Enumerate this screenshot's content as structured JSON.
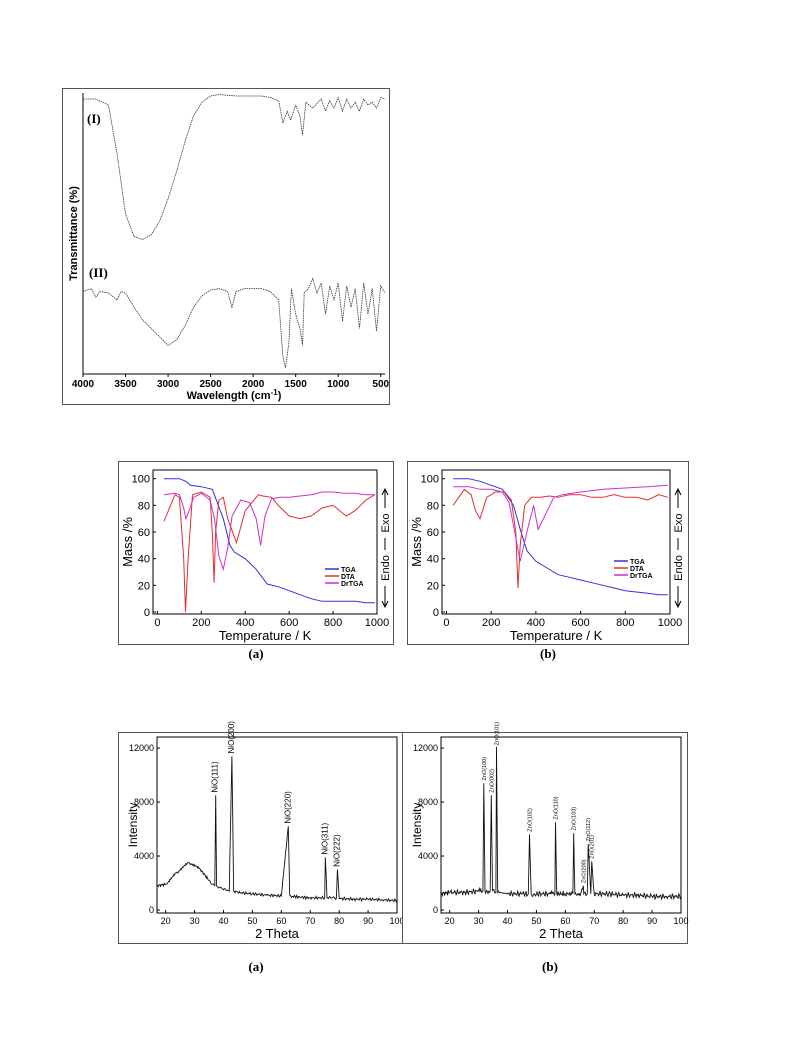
{
  "ftir": {
    "ylabel": "Transmittance (%)",
    "xlabel": "Wavelength (cm",
    "xlabel_sup": "-1",
    "xlabel_close": ")",
    "curve_labels": [
      "(I)",
      "(II)"
    ],
    "xticks": [
      "4000",
      "3500",
      "3000",
      "2500",
      "2000",
      "1500",
      "1000",
      "500"
    ]
  },
  "thermal": {
    "panel_labels": [
      "(a)",
      "(b)"
    ],
    "ylabel": "Mass /%",
    "xlabel": "Temperature / K",
    "exo_label": "Exo",
    "endo_label": "Endo",
    "yticks": [
      "0",
      "20",
      "40",
      "60",
      "80",
      "100"
    ],
    "xticks": [
      "0",
      "200",
      "400",
      "600",
      "800",
      "1000"
    ],
    "legend": [
      "TGA",
      "DTA",
      "DrTGA"
    ]
  },
  "xrd": {
    "panel_labels": [
      "(a)",
      "(b)"
    ],
    "ylabel": "Intensity",
    "xlabel": "2 Theta",
    "yticks": [
      "0",
      "4000",
      "8000",
      "12000"
    ],
    "xticks": [
      "20",
      "30",
      "40",
      "50",
      "60",
      "70",
      "80",
      "90",
      "100"
    ],
    "peak_labels_a": [
      "NiO(111)",
      "NiO(200)",
      "NiO(220)",
      "NiO(311)",
      "NiO(222)"
    ],
    "peak_labels_b": [
      "ZnO(100)",
      "ZnO(002)",
      "ZnO(101)",
      "ZnO(102)",
      "ZnO(110)",
      "ZnO(103)",
      "ZnO(200)",
      "ZnO(112)",
      "ZnO(201)"
    ]
  },
  "chart_data": [
    {
      "type": "line",
      "title": "",
      "xlabel": "Wavelength (cm-1)",
      "ylabel": "Transmittance (%)",
      "xlim": [
        4000,
        450
      ],
      "x_reversed": true,
      "y_units": "arbitrary",
      "series": [
        {
          "name": "(I)",
          "x": [
            4000,
            3850,
            3700,
            3600,
            3500,
            3400,
            3300,
            3200,
            3100,
            3000,
            2900,
            2800,
            2700,
            2600,
            2500,
            2400,
            2200,
            2000,
            1900,
            1800,
            1700,
            1650,
            1600,
            1560,
            1500,
            1450,
            1420,
            1380,
            1300,
            1200,
            1150,
            1100,
            1050,
            1000,
            950,
            900,
            850,
            800,
            750,
            700,
            650,
            600,
            550,
            500,
            450
          ],
          "y": [
            96,
            96,
            92,
            60,
            20,
            5,
            3,
            6,
            15,
            30,
            48,
            68,
            85,
            94,
            98,
            99,
            98,
            98,
            98,
            97,
            95,
            80,
            88,
            82,
            92,
            85,
            72,
            94,
            90,
            96,
            88,
            95,
            90,
            97,
            88,
            96,
            90,
            94,
            88,
            96,
            92,
            94,
            90,
            97,
            96
          ]
        },
        {
          "name": "(II)",
          "x": [
            4000,
            3900,
            3850,
            3800,
            3700,
            3600,
            3550,
            3500,
            3400,
            3300,
            3200,
            3100,
            3000,
            2900,
            2800,
            2700,
            2600,
            2500,
            2400,
            2300,
            2250,
            2200,
            2100,
            2000,
            1900,
            1800,
            1700,
            1650,
            1620,
            1580,
            1550,
            1500,
            1450,
            1420,
            1400,
            1350,
            1300,
            1250,
            1200,
            1150,
            1100,
            1050,
            1000,
            950,
            900,
            850,
            800,
            750,
            700,
            650,
            600,
            550,
            500,
            450
          ],
          "y": [
            56,
            58,
            52,
            56,
            55,
            50,
            56,
            55,
            45,
            36,
            30,
            24,
            18,
            22,
            32,
            45,
            53,
            57,
            58,
            56,
            45,
            56,
            58,
            58,
            58,
            56,
            50,
            10,
            2,
            20,
            58,
            40,
            30,
            18,
            55,
            58,
            65,
            55,
            62,
            40,
            60,
            50,
            62,
            35,
            60,
            45,
            58,
            30,
            62,
            40,
            58,
            28,
            60,
            55
          ]
        }
      ]
    },
    {
      "type": "line",
      "title": "(a)",
      "xlabel": "Temperature / K",
      "ylabel": "Mass /%",
      "xlim": [
        0,
        1000
      ],
      "ylim": [
        0,
        100
      ],
      "legend_position": "center-right",
      "series": [
        {
          "name": "TGA",
          "color": "#3030dd",
          "x": [
            30,
            100,
            130,
            150,
            200,
            250,
            300,
            330,
            350,
            400,
            450,
            500,
            550,
            600,
            650,
            700,
            750,
            800,
            850,
            900,
            950,
            990
          ],
          "y": [
            100,
            100,
            98,
            95,
            94,
            92,
            70,
            50,
            45,
            40,
            32,
            21,
            19,
            16,
            13,
            10,
            8,
            8,
            8,
            8,
            7,
            7
          ]
        },
        {
          "name": "DTA",
          "color": "#dd3030",
          "x": [
            30,
            80,
            100,
            120,
            128,
            140,
            160,
            200,
            240,
            250,
            258,
            265,
            280,
            300,
            320,
            360,
            400,
            440,
            460,
            480,
            520,
            550,
            600,
            650,
            700,
            750,
            800,
            830,
            860,
            900,
            950,
            990
          ],
          "y": [
            68,
            88,
            86,
            40,
            0,
            40,
            88,
            90,
            86,
            60,
            22,
            60,
            84,
            86,
            70,
            52,
            76,
            84,
            88,
            87,
            86,
            80,
            72,
            70,
            72,
            78,
            80,
            76,
            72,
            76,
            84,
            88
          ]
        },
        {
          "name": "DrTGA",
          "color": "#cc30cc",
          "x": [
            30,
            80,
            100,
            120,
            130,
            145,
            165,
            200,
            240,
            260,
            280,
            300,
            320,
            340,
            380,
            420,
            450,
            470,
            490,
            520,
            560,
            600,
            650,
            700,
            750,
            800,
            850,
            900,
            950,
            990
          ],
          "y": [
            88,
            89,
            88,
            78,
            70,
            76,
            86,
            89,
            84,
            70,
            42,
            32,
            48,
            72,
            84,
            82,
            70,
            50,
            72,
            85,
            86,
            86,
            87,
            88,
            90,
            90,
            89,
            89,
            88,
            88
          ]
        }
      ]
    },
    {
      "type": "line",
      "title": "(b)",
      "xlabel": "Temperature / K",
      "ylabel": "Mass /%",
      "xlim": [
        0,
        1000
      ],
      "ylim": [
        0,
        100
      ],
      "legend_position": "center-right",
      "series": [
        {
          "name": "TGA",
          "color": "#3030dd",
          "x": [
            30,
            100,
            150,
            200,
            250,
            300,
            330,
            360,
            400,
            450,
            500,
            550,
            600,
            650,
            700,
            750,
            800,
            850,
            900,
            950,
            990
          ],
          "y": [
            100,
            100,
            98,
            95,
            92,
            80,
            62,
            46,
            38,
            33,
            28,
            26,
            24,
            22,
            20,
            18,
            16,
            15,
            14,
            13,
            13
          ]
        },
        {
          "name": "DTA",
          "color": "#dd3030",
          "x": [
            30,
            80,
            110,
            130,
            150,
            180,
            220,
            260,
            290,
            310,
            320,
            330,
            350,
            380,
            420,
            460,
            500,
            550,
            600,
            650,
            700,
            750,
            800,
            850,
            900,
            950,
            990
          ],
          "y": [
            80,
            92,
            88,
            76,
            70,
            86,
            90,
            90,
            84,
            60,
            18,
            50,
            80,
            86,
            86,
            87,
            86,
            88,
            88,
            86,
            86,
            88,
            86,
            86,
            84,
            88,
            86
          ]
        },
        {
          "name": "DrTGA",
          "color": "#cc30cc",
          "x": [
            30,
            100,
            150,
            200,
            250,
            280,
            300,
            330,
            360,
            390,
            410,
            440,
            480,
            520,
            600,
            700,
            800,
            900,
            990
          ],
          "y": [
            94,
            94,
            92,
            92,
            90,
            82,
            65,
            38,
            60,
            80,
            62,
            72,
            86,
            88,
            90,
            92,
            93,
            94,
            95
          ]
        }
      ]
    },
    {
      "type": "line",
      "title": "(a)",
      "xlabel": "2 Theta",
      "ylabel": "Intensity",
      "xlim": [
        17,
        100
      ],
      "ylim": [
        0,
        12500
      ],
      "series": [
        {
          "name": "",
          "x": [
            17,
            20,
            24,
            28,
            32,
            35,
            37,
            37.3,
            37.6,
            38.2,
            40,
            42,
            42.9,
            43.5,
            45,
            50,
            55,
            60,
            62.4,
            62.9,
            64,
            70,
            75,
            75.2,
            75.8,
            77,
            79,
            79.4,
            80,
            85,
            90,
            95,
            100
          ],
          "y": [
            1800,
            1900,
            2800,
            3500,
            3000,
            2200,
            1800,
            8500,
            1800,
            1700,
            1500,
            1400,
            11400,
            1400,
            1300,
            1200,
            1100,
            1050,
            6200,
            1100,
            1000,
            900,
            900,
            3900,
            900,
            900,
            850,
            3000,
            850,
            800,
            800,
            750,
            700
          ]
        }
      ]
    },
    {
      "type": "line",
      "title": "(b)",
      "xlabel": "2 Theta",
      "ylabel": "Intensity",
      "xlim": [
        17,
        100
      ],
      "ylim": [
        0,
        12500
      ],
      "series": [
        {
          "name": "",
          "x": [
            17,
            20,
            25,
            30,
            31.5,
            31.8,
            32.2,
            33,
            34,
            34.4,
            34.8,
            35.5,
            36,
            36.2,
            36.6,
            37.2,
            40,
            45,
            47.2,
            47.6,
            48.2,
            50,
            55,
            56.4,
            56.6,
            57,
            60,
            62.6,
            62.9,
            63.3,
            65,
            66.2,
            66.4,
            67.6,
            67.9,
            68.8,
            69.1,
            70,
            75,
            80,
            85,
            90,
            95,
            100
          ],
          "y": [
            1200,
            1300,
            1300,
            1400,
            1400,
            9400,
            1400,
            1400,
            1400,
            8500,
            1400,
            1300,
            1300,
            12100,
            1300,
            1300,
            1200,
            1200,
            1200,
            5600,
            1200,
            1200,
            1200,
            1200,
            6500,
            1200,
            1200,
            1200,
            5700,
            1200,
            1200,
            1800,
            1200,
            1200,
            4900,
            1200,
            3600,
            1200,
            1200,
            1100,
            1100,
            1000,
            1000,
            1000
          ]
        }
      ]
    }
  ]
}
